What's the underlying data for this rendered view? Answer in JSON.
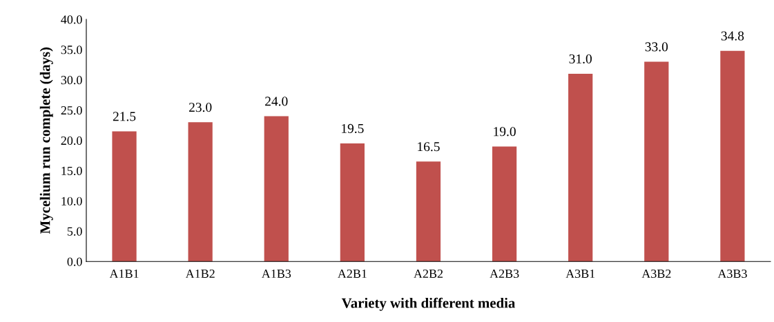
{
  "chart_data": {
    "type": "bar",
    "xlabel": "Variety with different media",
    "ylabel": "Mycelium run complete (days)",
    "categories": [
      "A1B1",
      "A1B2",
      "A1B3",
      "A2B1",
      "A2B2",
      "A2B3",
      "A3B1",
      "A3B2",
      "A3B3"
    ],
    "values": [
      21.5,
      23.0,
      24.0,
      19.5,
      16.5,
      19.0,
      31.0,
      33.0,
      34.8
    ],
    "value_labels": [
      "21.5",
      "23.0",
      "24.0",
      "19.5",
      "16.5",
      "19.0",
      "31.0",
      "33.0",
      "34.8"
    ],
    "color": "#c0504d",
    "ylim": [
      0,
      40
    ],
    "yticks": [
      {
        "value": 0,
        "label": "0.0"
      },
      {
        "value": 5,
        "label": "5.0"
      },
      {
        "value": 10,
        "label": "10.0"
      },
      {
        "value": 15,
        "label": "15.0"
      },
      {
        "value": 20,
        "label": "20.0"
      },
      {
        "value": 25,
        "label": "25.0"
      },
      {
        "value": 30,
        "label": "30.0"
      },
      {
        "value": 35,
        "label": "35.0"
      },
      {
        "value": 40,
        "label": "40.0"
      }
    ],
    "grid": false,
    "legend": false
  }
}
